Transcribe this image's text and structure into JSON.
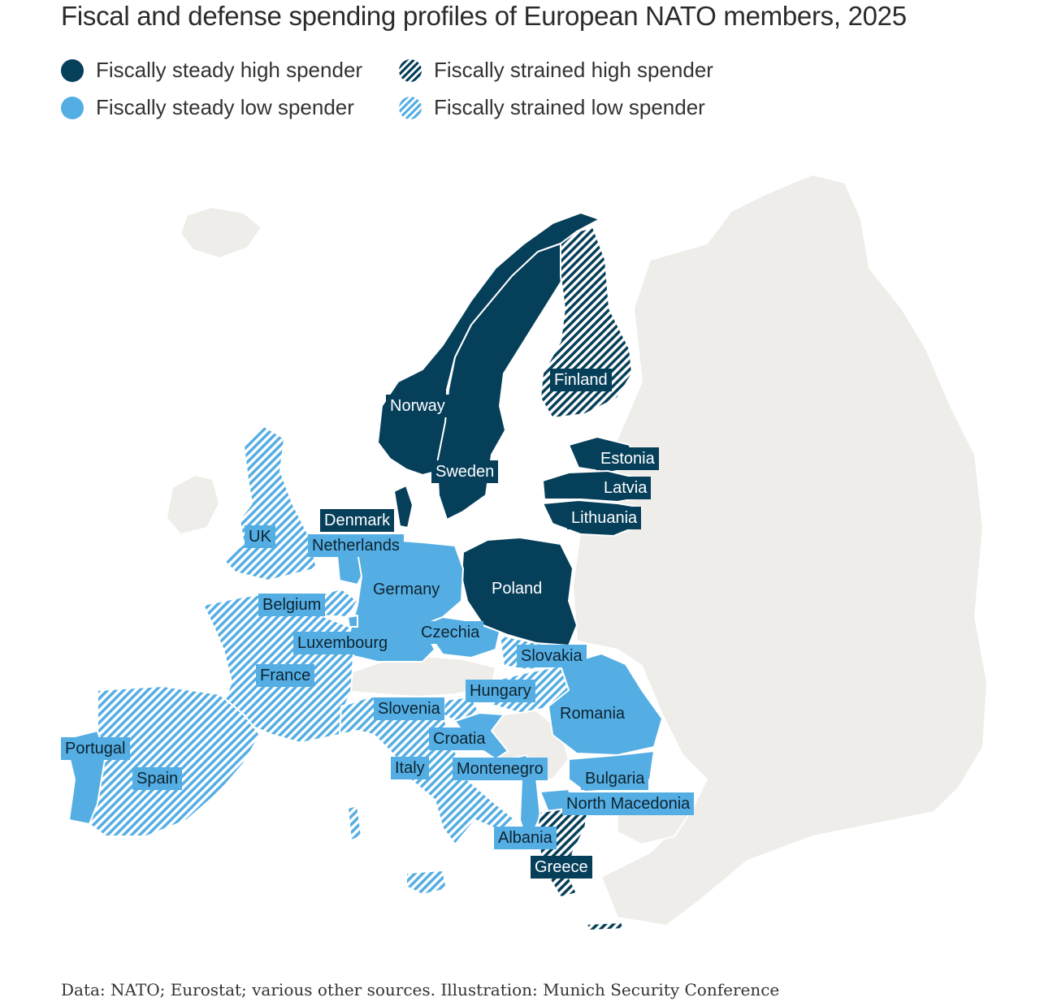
{
  "title": "Fiscal and defense spending profiles of European NATO members, 2025",
  "colors": {
    "dark": "#063f5a",
    "light": "#55aee3",
    "land": "#efedea",
    "water": "#ffffff"
  },
  "legend": [
    {
      "label": "Fiscally steady high spender",
      "style": "solid-dark"
    },
    {
      "label": "Fiscally strained high spender",
      "style": "hatched-dark"
    },
    {
      "label": "Fiscally steady low spender",
      "style": "solid-light"
    },
    {
      "label": "Fiscally strained low spender",
      "style": "hatched-light"
    }
  ],
  "countries": [
    {
      "name": "Norway",
      "category": "Fiscally steady high spender"
    },
    {
      "name": "Sweden",
      "category": "Fiscally steady high spender"
    },
    {
      "name": "Finland",
      "category": "Fiscally strained high spender"
    },
    {
      "name": "Estonia",
      "category": "Fiscally steady high spender"
    },
    {
      "name": "Latvia",
      "category": "Fiscally steady high spender"
    },
    {
      "name": "Lithuania",
      "category": "Fiscally steady high spender"
    },
    {
      "name": "Denmark",
      "category": "Fiscally steady high spender"
    },
    {
      "name": "Poland",
      "category": "Fiscally steady high spender"
    },
    {
      "name": "Greece",
      "category": "Fiscally strained high spender"
    },
    {
      "name": "UK",
      "category": "Fiscally strained low spender"
    },
    {
      "name": "Netherlands",
      "category": "Fiscally steady low spender"
    },
    {
      "name": "Germany",
      "category": "Fiscally steady low spender"
    },
    {
      "name": "Belgium",
      "category": "Fiscally strained low spender"
    },
    {
      "name": "Luxembourg",
      "category": "Fiscally steady low spender"
    },
    {
      "name": "Czechia",
      "category": "Fiscally steady low spender"
    },
    {
      "name": "Slovakia",
      "category": "Fiscally strained low spender"
    },
    {
      "name": "France",
      "category": "Fiscally strained low spender"
    },
    {
      "name": "Hungary",
      "category": "Fiscally strained low spender"
    },
    {
      "name": "Slovenia",
      "category": "Fiscally strained low spender"
    },
    {
      "name": "Romania",
      "category": "Fiscally steady low spender"
    },
    {
      "name": "Croatia",
      "category": "Fiscally steady low spender"
    },
    {
      "name": "Portugal",
      "category": "Fiscally steady low spender"
    },
    {
      "name": "Spain",
      "category": "Fiscally strained low spender"
    },
    {
      "name": "Italy",
      "category": "Fiscally strained low spender"
    },
    {
      "name": "Montenegro",
      "category": "Fiscally steady low spender"
    },
    {
      "name": "Bulgaria",
      "category": "Fiscally steady low spender"
    },
    {
      "name": "North Macedonia",
      "category": "Fiscally steady low spender"
    },
    {
      "name": "Albania",
      "category": "Fiscally steady low spender"
    }
  ],
  "footer": "Data: NATO; Eurostat; various other sources. Illustration: Munich Security Conference"
}
